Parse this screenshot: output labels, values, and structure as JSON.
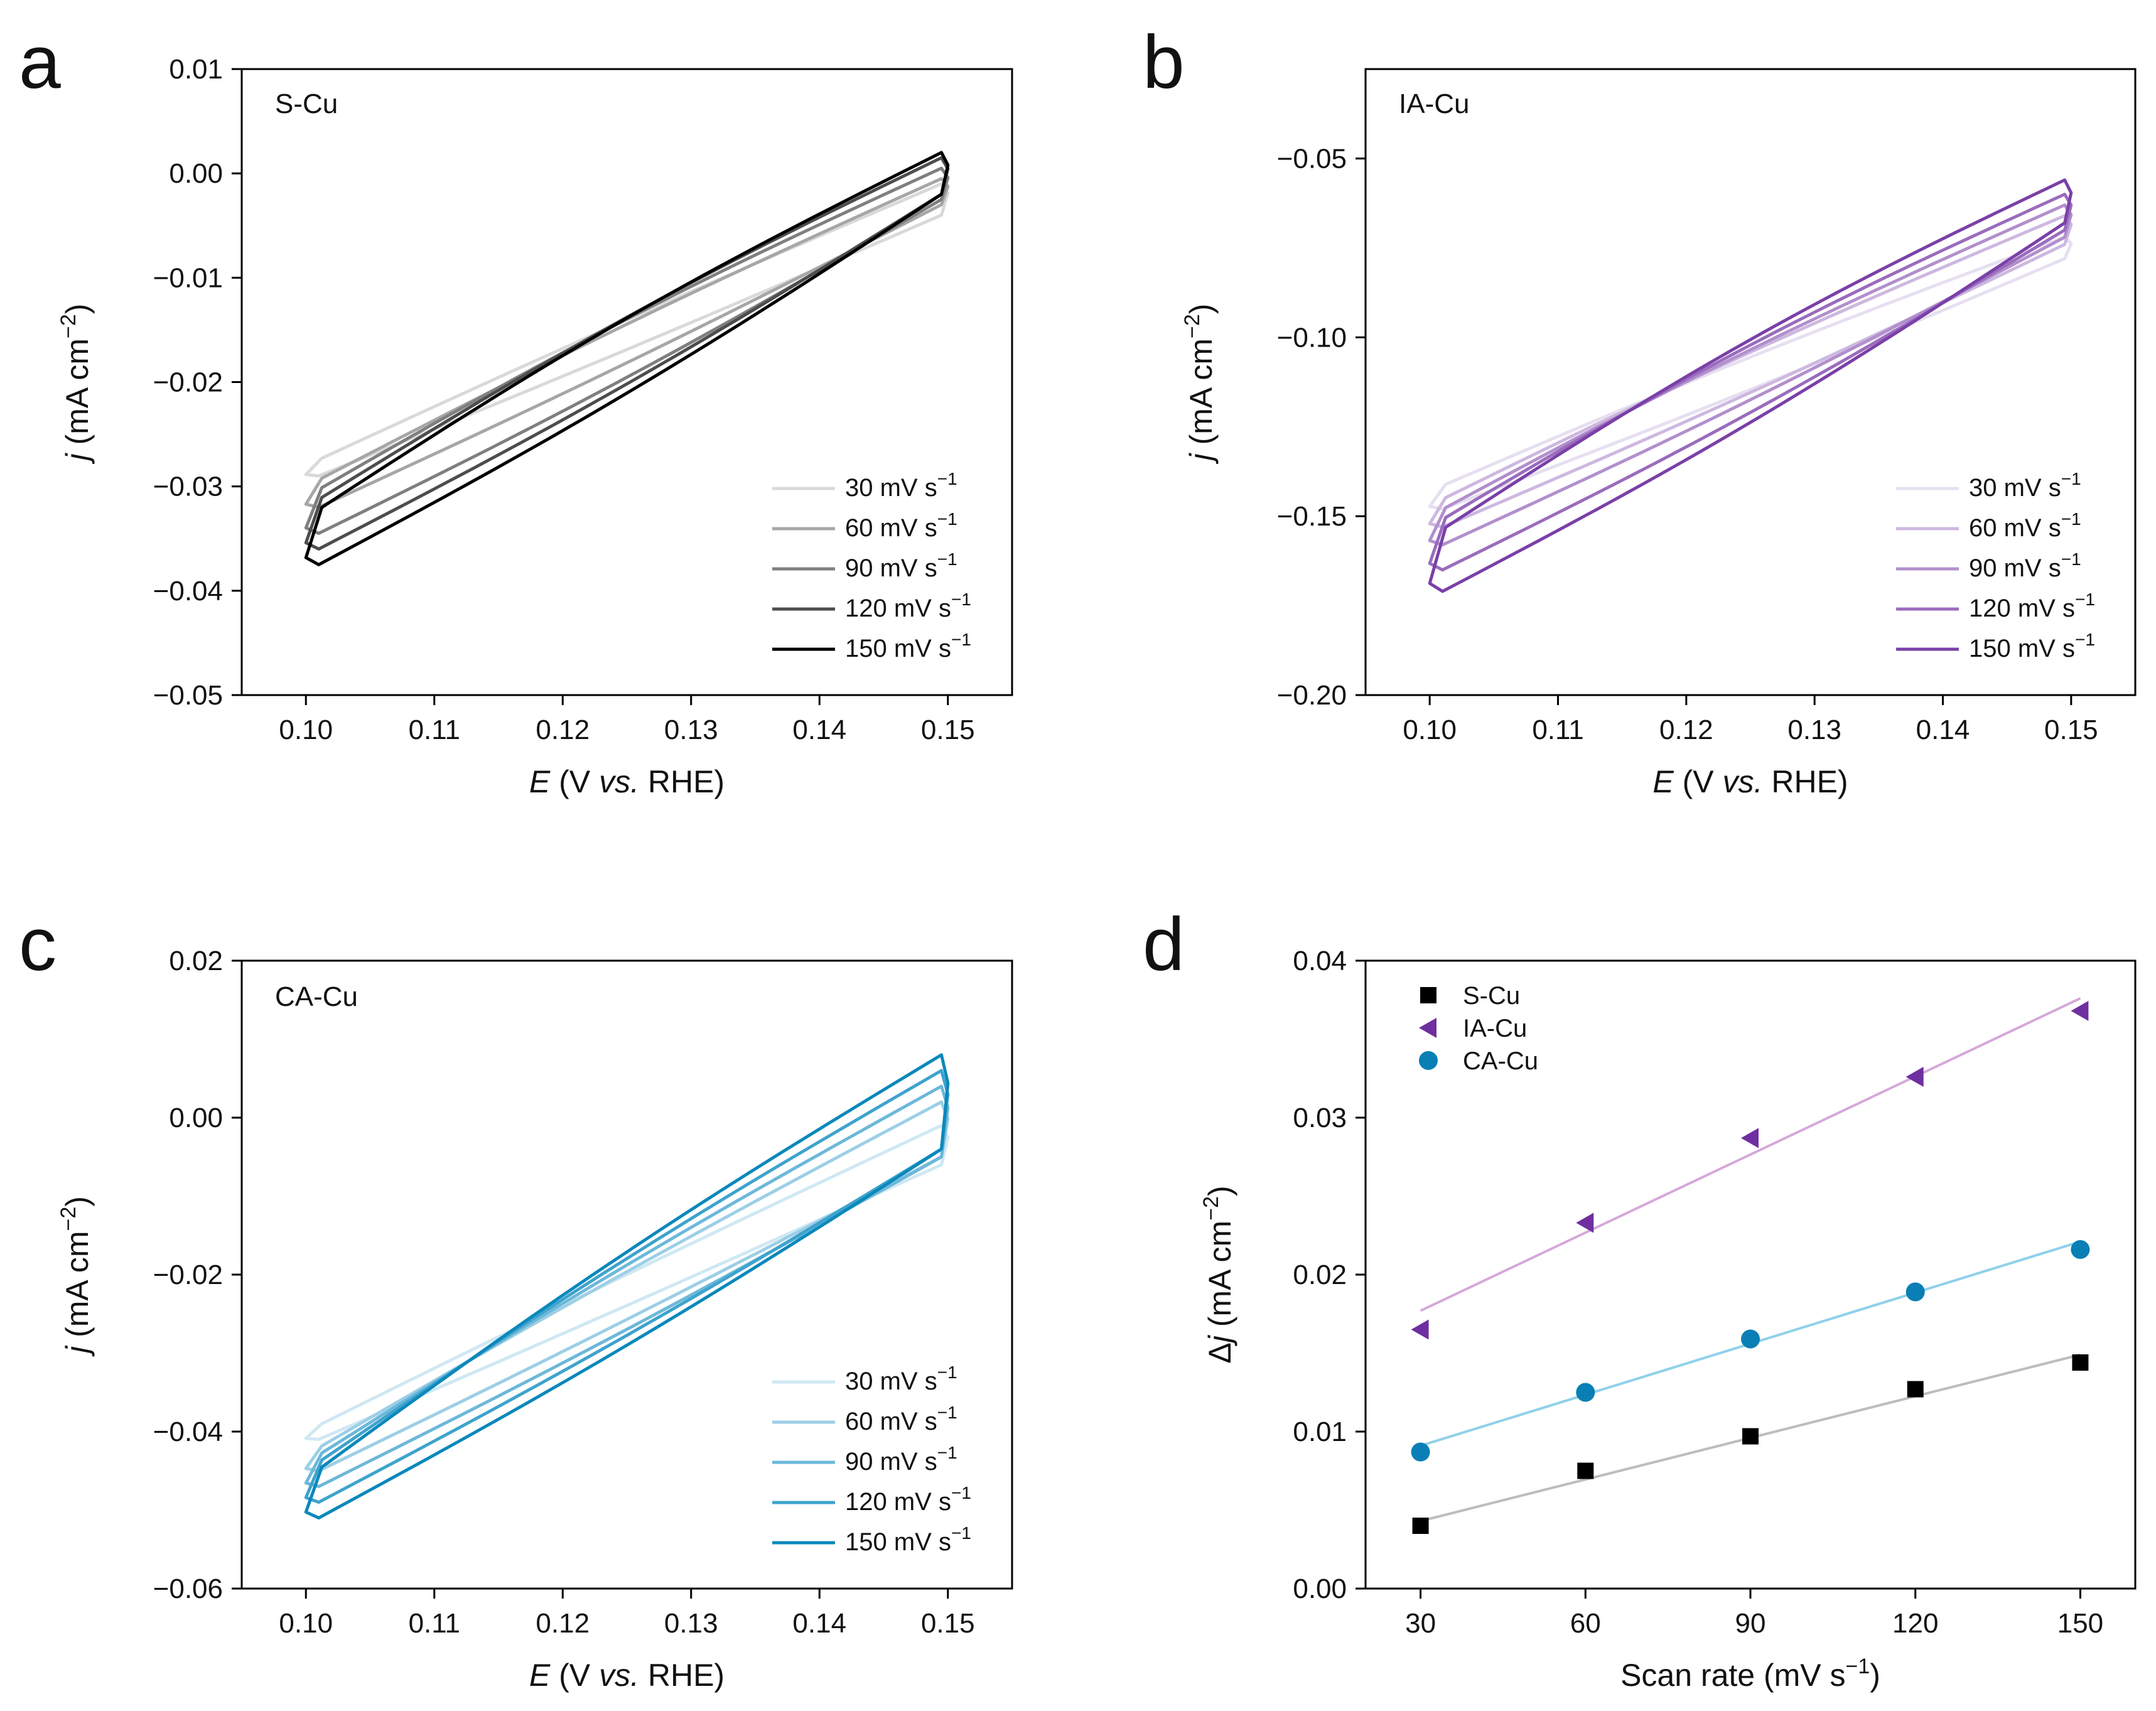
{
  "colors": {
    "a": [
      "#d9d9d9",
      "#a6a6a6",
      "#7f7f7f",
      "#4d4d4d",
      "#000000"
    ],
    "b": [
      "#e6dff0",
      "#cdb8e0",
      "#b28fcd",
      "#9a6cbd",
      "#7a40a8"
    ],
    "c": [
      "#cfe8f3",
      "#9ccfe6",
      "#6cb8da",
      "#3ea3cd",
      "#0b88bb"
    ],
    "d_markers": [
      "#000000",
      "#6f2fa0",
      "#0a7fb5"
    ],
    "d_fits": [
      "#bdbdbd",
      "#d5a8d9",
      "#8fd0ea"
    ]
  },
  "chart_data": [
    {
      "panel": "a",
      "type": "line",
      "inset_label": "S-Cu",
      "xlabel_italic": "E",
      "xlabel_rest": " (V ",
      "xlabel_vs": "vs.",
      "xlabel_end": " RHE)",
      "ylabel_italic": "j",
      "ylabel_rest": " (mA cm",
      "ylabel_sup": "−2",
      "ylabel_end": ")",
      "xlim": [
        0.095,
        0.155
      ],
      "ylim": [
        -0.05,
        0.01
      ],
      "xticks": [
        "0.10",
        "0.11",
        "0.12",
        "0.13",
        "0.14",
        "0.15"
      ],
      "yticks": [
        "0.01",
        "0.00",
        "−0.01",
        "−0.02",
        "−0.03",
        "−0.04",
        "−0.05"
      ],
      "legend": [
        "30 mV s",
        "60 mV s",
        "90 mV s",
        "120 mV s",
        "150 mV s"
      ],
      "legend_sup": "−1",
      "series": [
        {
          "name": "30 mV s−1",
          "bottom_left": -0.029,
          "top_left": -0.028,
          "bottom_right": -0.004,
          "top_right": -0.001
        },
        {
          "name": "60 mV s−1",
          "bottom_left": -0.032,
          "top_left": -0.03,
          "bottom_right": -0.003,
          "top_right": -0.0005
        },
        {
          "name": "90 mV s−1",
          "bottom_left": -0.0345,
          "top_left": -0.031,
          "bottom_right": -0.0025,
          "top_right": 0.0005
        },
        {
          "name": "120 mV s−1",
          "bottom_left": -0.036,
          "top_left": -0.032,
          "bottom_right": -0.002,
          "top_right": 0.0015
        },
        {
          "name": "150 mV s−1",
          "bottom_left": -0.0375,
          "top_left": -0.033,
          "bottom_right": -0.002,
          "top_right": 0.002
        }
      ]
    },
    {
      "panel": "b",
      "type": "line",
      "inset_label": "IA-Cu",
      "xlabel_italic": "E",
      "xlabel_rest": " (V ",
      "xlabel_vs": "vs.",
      "xlabel_end": " RHE)",
      "ylabel_italic": "j",
      "ylabel_rest": " (mA cm",
      "ylabel_sup": "−2",
      "ylabel_end": ")",
      "xlim": [
        0.095,
        0.155
      ],
      "ylim": [
        -0.2,
        -0.025
      ],
      "ytick_values": [
        -0.05,
        -0.1,
        -0.15,
        -0.2
      ],
      "xticks": [
        "0.10",
        "0.11",
        "0.12",
        "0.13",
        "0.14",
        "0.15"
      ],
      "yticks": [
        "−0.05",
        "−0.10",
        "−0.15",
        "−0.20"
      ],
      "legend": [
        "30 mV s",
        "60 mV s",
        "90 mV s",
        "120 mV s",
        "150 mV s"
      ],
      "legend_sup": "−1",
      "series": [
        {
          "name": "30 mV s−1",
          "bottom_left": -0.148,
          "top_left": -0.143,
          "bottom_right": -0.078,
          "top_right": -0.072
        },
        {
          "name": "60 mV s−1",
          "bottom_left": -0.153,
          "top_left": -0.147,
          "bottom_right": -0.074,
          "top_right": -0.066
        },
        {
          "name": "90 mV s−1",
          "bottom_left": -0.158,
          "top_left": -0.15,
          "bottom_right": -0.072,
          "top_right": -0.063
        },
        {
          "name": "120 mV s−1",
          "bottom_left": -0.165,
          "top_left": -0.153,
          "bottom_right": -0.07,
          "top_right": -0.06
        },
        {
          "name": "150 mV s−1",
          "bottom_left": -0.171,
          "top_left": -0.156,
          "bottom_right": -0.068,
          "top_right": -0.056
        }
      ]
    },
    {
      "panel": "c",
      "type": "line",
      "inset_label": "CA-Cu",
      "xlabel_italic": "E",
      "xlabel_rest": " (V ",
      "xlabel_vs": "vs.",
      "xlabel_end": " RHE)",
      "ylabel_italic": "j",
      "ylabel_rest": " (mA cm",
      "ylabel_sup": "−2",
      "ylabel_end": ")",
      "xlim": [
        0.095,
        0.155
      ],
      "ylim": [
        -0.06,
        0.02
      ],
      "xticks": [
        "0.10",
        "0.11",
        "0.12",
        "0.13",
        "0.14",
        "0.15"
      ],
      "yticks": [
        "0.02",
        "0.00",
        "−0.02",
        "−0.04",
        "−0.06"
      ],
      "legend": [
        "30 mV s",
        "60 mV s",
        "90 mV s",
        "120 mV s",
        "150 mV s"
      ],
      "legend_sup": "−1",
      "series": [
        {
          "name": "30 mV s−1",
          "bottom_left": -0.041,
          "top_left": -0.04,
          "bottom_right": -0.006,
          "top_right": -0.001
        },
        {
          "name": "60 mV s−1",
          "bottom_left": -0.045,
          "top_left": -0.043,
          "bottom_right": -0.005,
          "top_right": 0.002
        },
        {
          "name": "90 mV s−1",
          "bottom_left": -0.047,
          "top_left": -0.044,
          "bottom_right": -0.005,
          "top_right": 0.004
        },
        {
          "name": "120 mV s−1",
          "bottom_left": -0.049,
          "top_left": -0.045,
          "bottom_right": -0.004,
          "top_right": 0.006
        },
        {
          "name": "150 mV s−1",
          "bottom_left": -0.051,
          "top_left": -0.046,
          "bottom_right": -0.004,
          "top_right": 0.008
        }
      ]
    },
    {
      "panel": "d",
      "type": "scatter",
      "xlabel": "Scan rate (mV s",
      "xlabel_sup": "−1",
      "xlabel_end": ")",
      "ylabel_delta": "Δ",
      "ylabel_italic": "j",
      "ylabel_rest": " (mA cm",
      "ylabel_sup": "−2",
      "ylabel_end": ")",
      "xlim": [
        20,
        160
      ],
      "ylim": [
        0,
        0.04
      ],
      "xticks": [
        "30",
        "60",
        "90",
        "120",
        "150"
      ],
      "yticks": [
        "0.04",
        "0.03",
        "0.02",
        "0.01",
        "0.00"
      ],
      "x": [
        30,
        60,
        90,
        120,
        150
      ],
      "series": [
        {
          "name": "S-Cu",
          "marker": "square",
          "values": [
            0.004,
            0.0075,
            0.0097,
            0.0127,
            0.0144
          ],
          "fit": [
            0.0043,
            0.0149
          ]
        },
        {
          "name": "IA-Cu",
          "marker": "triangle-left",
          "values": [
            0.0165,
            0.0233,
            0.0287,
            0.0326,
            0.0368
          ],
          "fit": [
            0.0177,
            0.0376
          ]
        },
        {
          "name": "CA-Cu",
          "marker": "circle",
          "values": [
            0.0087,
            0.0125,
            0.0159,
            0.0189,
            0.0216
          ],
          "fit": [
            0.0091,
            0.0221
          ]
        }
      ]
    }
  ]
}
